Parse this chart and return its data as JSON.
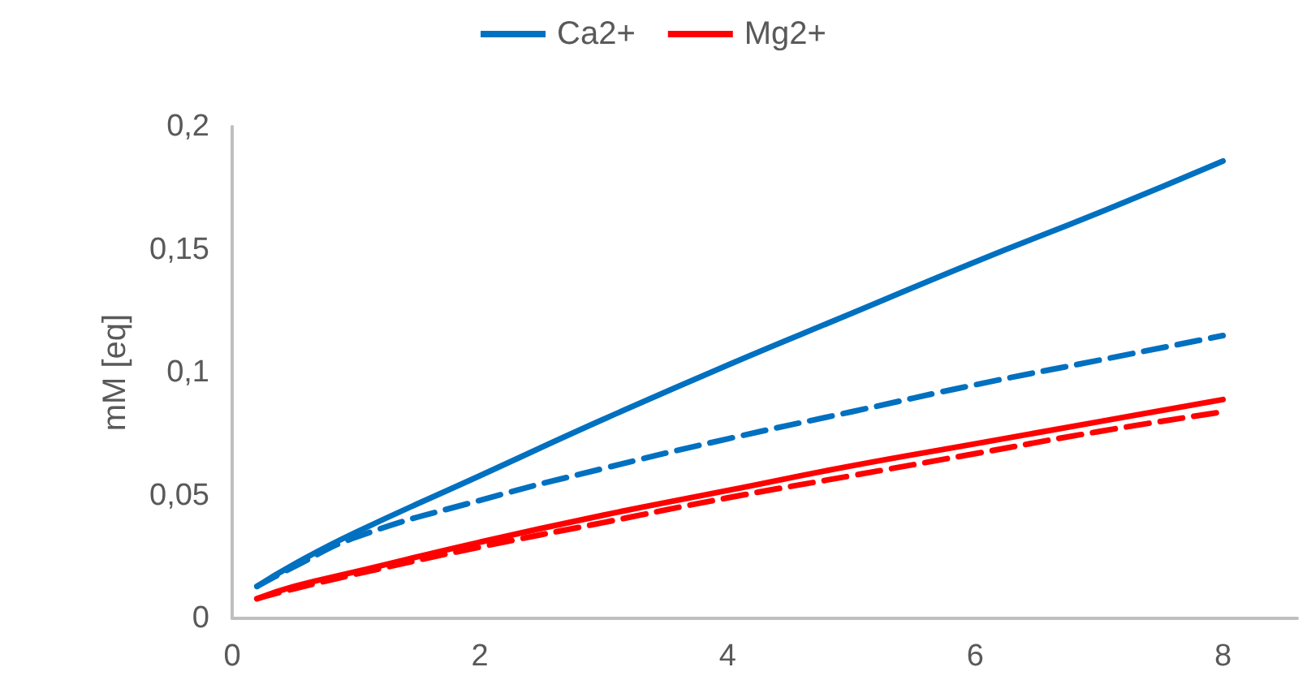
{
  "chart_data": {
    "type": "line",
    "ylabel": "mM [eq]",
    "legend": "top",
    "grid": false,
    "marker": "none",
    "xlim": [
      0,
      8.6
    ],
    "xticks": [
      0,
      2,
      4,
      6,
      8
    ],
    "ylim": [
      0,
      0.2
    ],
    "yticks": [
      0,
      {
        "value": 0.05,
        "label": "0,05"
      },
      {
        "value": 0.1,
        "label": "0,1"
      },
      {
        "value": 0.15,
        "label": "0,15"
      },
      {
        "value": 0.2,
        "label": "0,2"
      }
    ],
    "series": [
      {
        "name": "Ca2+",
        "color": "#0070c0",
        "line_style": "solid",
        "x": [
          0.2,
          0.5,
          1,
          2,
          3,
          4,
          5,
          6,
          7,
          8
        ],
        "values": [
          0.013,
          0.022,
          0.035,
          0.058,
          0.081,
          0.103,
          0.124,
          0.145,
          0.165,
          0.186
        ]
      },
      {
        "name": "Mg2+",
        "color": "#ff0000",
        "line_style": "solid",
        "x": [
          0.2,
          0.5,
          1,
          2,
          3,
          4,
          5,
          6,
          7,
          8
        ],
        "values": [
          0.008,
          0.013,
          0.019,
          0.031,
          0.042,
          0.052,
          0.062,
          0.071,
          0.08,
          0.089
        ]
      },
      {
        "color": "#0070c0",
        "line_style": "dashed",
        "x": [
          0.2,
          0.5,
          1,
          2,
          3,
          4,
          5,
          6,
          7,
          8
        ],
        "values": [
          0.013,
          0.021,
          0.033,
          0.048,
          0.061,
          0.073,
          0.084,
          0.095,
          0.105,
          0.115
        ]
      },
      {
        "color": "#ff0000",
        "line_style": "dashed",
        "x": [
          0.2,
          0.5,
          1,
          2,
          3,
          4,
          5,
          6,
          7,
          8
        ],
        "values": [
          0.008,
          0.012,
          0.018,
          0.029,
          0.039,
          0.049,
          0.058,
          0.067,
          0.076,
          0.084
        ]
      }
    ]
  }
}
